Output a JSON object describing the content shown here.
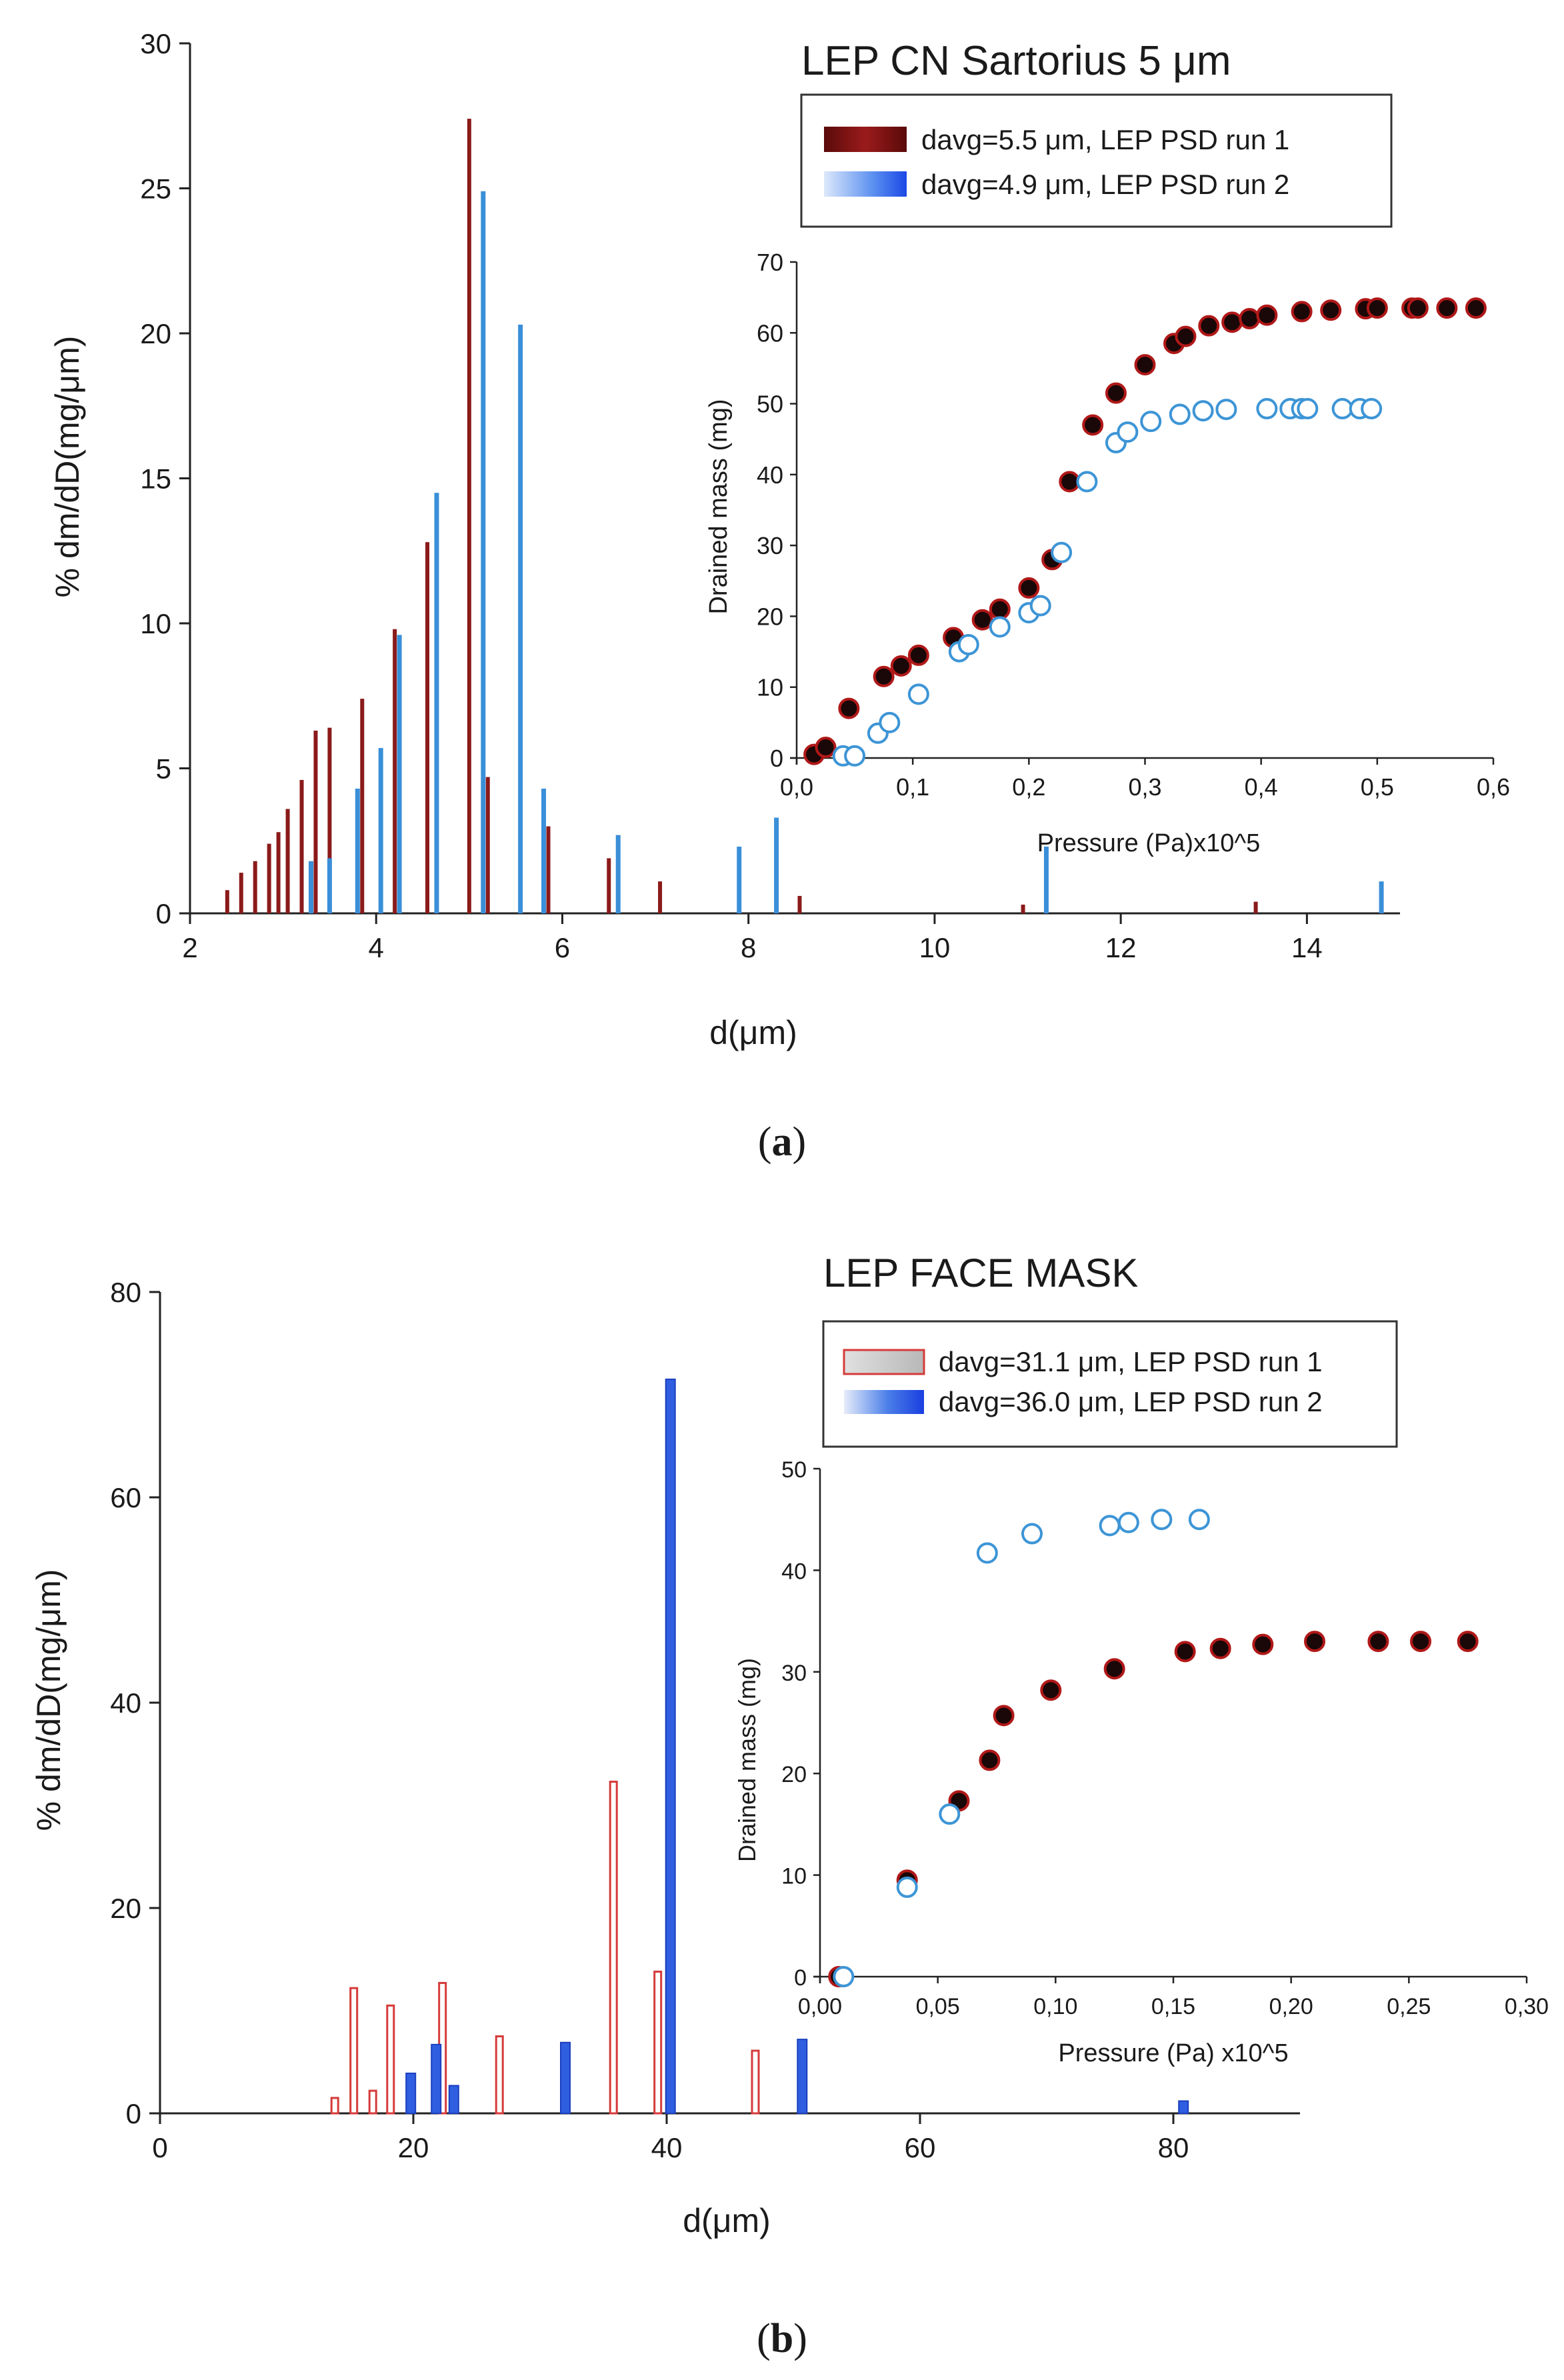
{
  "panels": [
    {
      "caption_open": "(",
      "caption_letter": "a",
      "caption_close": ")"
    },
    {
      "caption_open": "(",
      "caption_letter": "b",
      "caption_close": ")"
    }
  ],
  "chart_data": [
    {
      "type": "bar",
      "title": "LEP CN Sartorius 5 μm",
      "xlabel": "d(μm)",
      "ylabel": "% dm/dD(mg/μm)",
      "xlim": [
        2,
        15
      ],
      "ylim": [
        0,
        30
      ],
      "xticks": [
        "2",
        "4",
        "6",
        "8",
        "10",
        "12",
        "14"
      ],
      "yticks": [
        "0",
        "5",
        "10",
        "15",
        "20",
        "25",
        "30"
      ],
      "legend_position": "top-right",
      "series": [
        {
          "name": "davg=5.5 μm, LEP PSD run 1",
          "color": "#8b1a1a",
          "x": [
            2.4,
            2.55,
            2.7,
            2.85,
            2.95,
            3.05,
            3.2,
            3.35,
            3.5,
            3.85,
            4.2,
            4.55,
            5.0,
            5.2,
            5.85,
            6.5,
            7.05,
            8.55,
            10.95,
            13.45
          ],
          "values": [
            0.8,
            1.4,
            1.8,
            2.4,
            2.8,
            3.6,
            4.6,
            6.3,
            6.4,
            7.4,
            9.8,
            12.8,
            27.4,
            4.7,
            3.0,
            1.9,
            1.1,
            0.6,
            0.3,
            0.4
          ]
        },
        {
          "name": "davg=4.9 μm, LEP PSD run 2",
          "color": "#3a8fd8",
          "x": [
            3.3,
            3.5,
            3.8,
            4.05,
            4.25,
            4.65,
            5.15,
            5.55,
            5.8,
            6.6,
            7.9,
            8.3,
            11.2,
            14.8
          ],
          "values": [
            1.8,
            1.9,
            4.3,
            5.7,
            9.6,
            14.5,
            24.9,
            20.3,
            4.3,
            2.7,
            2.3,
            3.3,
            2.3,
            1.1
          ]
        }
      ],
      "inset": {
        "type": "scatter",
        "xlabel": "Pressure (Pa)x10^5",
        "ylabel": "Drained mass (mg)",
        "xlim": [
          0,
          0.6
        ],
        "ylim": [
          0,
          70
        ],
        "xticks": [
          "0,0",
          "0,1",
          "0,2",
          "0,3",
          "0,4",
          "0,5",
          "0,6"
        ],
        "yticks": [
          "0",
          "10",
          "20",
          "30",
          "40",
          "50",
          "60",
          "70"
        ],
        "series": [
          {
            "name": "davg=5.5 μm, LEP PSD run 1",
            "marker": "filled-dark",
            "x": [
              0.015,
              0.025,
              0.045,
              0.075,
              0.09,
              0.105,
              0.135,
              0.16,
              0.175,
              0.2,
              0.22,
              0.235,
              0.255,
              0.275,
              0.3,
              0.325,
              0.335,
              0.355,
              0.375,
              0.39,
              0.405,
              0.435,
              0.46,
              0.49,
              0.5,
              0.53,
              0.535,
              0.56,
              0.585
            ],
            "y": [
              0.5,
              1.5,
              7,
              11.5,
              13,
              14.5,
              17,
              19.5,
              21,
              24,
              28,
              39,
              47,
              51.5,
              55.5,
              58.5,
              59.5,
              61,
              61.5,
              62,
              62.5,
              63,
              63.2,
              63.4,
              63.5,
              63.5,
              63.5,
              63.5,
              63.5
            ]
          },
          {
            "name": "davg=4.9 μm, LEP PSD run 2",
            "marker": "open-blue",
            "x": [
              0.04,
              0.05,
              0.07,
              0.08,
              0.105,
              0.14,
              0.148,
              0.175,
              0.2,
              0.21,
              0.228,
              0.25,
              0.275,
              0.285,
              0.305,
              0.33,
              0.35,
              0.37,
              0.405,
              0.425,
              0.435,
              0.44,
              0.47,
              0.485,
              0.495
            ],
            "y": [
              0.3,
              0.3,
              3.5,
              5,
              9,
              15,
              16,
              18.5,
              20.5,
              21.5,
              29,
              39,
              44.5,
              46,
              47.5,
              48.5,
              49,
              49.2,
              49.3,
              49.3,
              49.3,
              49.3,
              49.3,
              49.3,
              49.3
            ]
          }
        ]
      }
    },
    {
      "type": "bar",
      "title": "LEP FACE MASK",
      "xlabel": "d(μm)",
      "ylabel": "% dm/dD(mg/μm)",
      "xlim": [
        0,
        90
      ],
      "ylim": [
        0,
        80
      ],
      "xticks": [
        "0",
        "20",
        "40",
        "60",
        "80"
      ],
      "yticks": [
        "0",
        "20",
        "40",
        "60",
        "80"
      ],
      "legend_position": "top-right",
      "series": [
        {
          "name": "davg=31.1 μm, LEP PSD run 1",
          "color": "#d63a3a",
          "fill": "#ffffff",
          "x": [
            13.8,
            15.3,
            16.8,
            18.2,
            22.3,
            26.8,
            35.8,
            39.3,
            47.0
          ],
          "values": [
            1.5,
            12.2,
            2.2,
            10.5,
            12.7,
            7.5,
            32.3,
            13.8,
            6.1
          ]
        },
        {
          "name": "davg=36.0 μm, LEP PSD run 2",
          "color": "#2f5fe0",
          "fill": "#2f5fe0",
          "x": [
            19.8,
            21.8,
            23.2,
            32.0,
            40.3,
            50.7,
            80.8
          ],
          "values": [
            3.9,
            6.7,
            2.7,
            6.9,
            71.5,
            7.2,
            1.2
          ]
        }
      ],
      "inset": {
        "type": "scatter",
        "xlabel": "Pressure (Pa) x10^5",
        "ylabel": "Drained mass (mg)",
        "xlim": [
          0,
          0.3
        ],
        "ylim": [
          0,
          50
        ],
        "xticks": [
          "0,00",
          "0,05",
          "0,10",
          "0,15",
          "0,20",
          "0,25",
          "0,30"
        ],
        "yticks": [
          "0",
          "10",
          "20",
          "30",
          "40",
          "50"
        ],
        "series": [
          {
            "name": "davg=31.1 μm, LEP PSD run 1",
            "marker": "filled-dark",
            "x": [
              0.008,
              0.037,
              0.059,
              0.072,
              0.078,
              0.098,
              0.125,
              0.155,
              0.17,
              0.188,
              0.21,
              0.237,
              0.255,
              0.275
            ],
            "y": [
              0,
              9.5,
              17.3,
              21.3,
              25.7,
              28.2,
              30.3,
              32,
              32.3,
              32.7,
              33,
              33,
              33,
              33
            ]
          },
          {
            "name": "davg=36.0 μm, LEP PSD run 2",
            "marker": "open-blue",
            "x": [
              0.01,
              0.037,
              0.055,
              0.071,
              0.09,
              0.123,
              0.131,
              0.145,
              0.161
            ],
            "y": [
              0,
              8.8,
              16,
              41.7,
              43.6,
              44.4,
              44.7,
              45,
              45
            ]
          }
        ]
      }
    }
  ]
}
